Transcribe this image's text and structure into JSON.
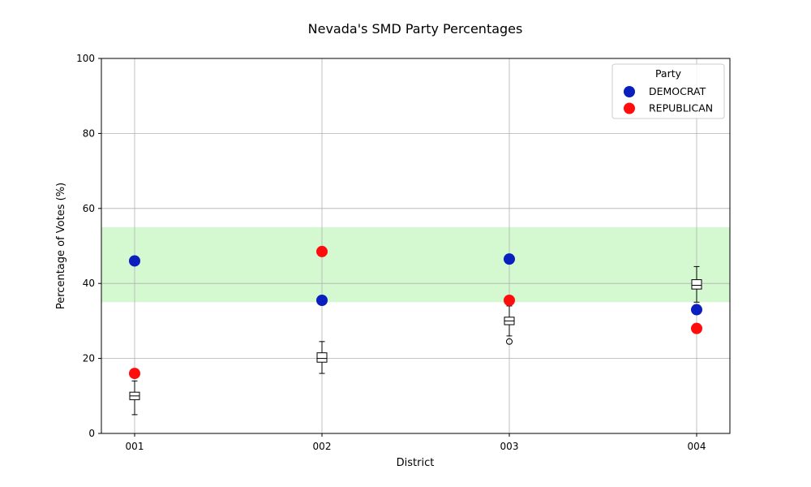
{
  "chart_data": {
    "type": "scatter",
    "title": "Nevada's SMD Party Percentages",
    "xlabel": "District",
    "ylabel": "Percentage of Votes (%)",
    "categories": [
      "001",
      "002",
      "003",
      "004"
    ],
    "ylim": [
      0,
      100
    ],
    "yticks": [
      0,
      20,
      40,
      60,
      80,
      100
    ],
    "grid": true,
    "highlight_band": {
      "from": 35,
      "to": 55,
      "color": "#d4f8d0"
    },
    "legend": {
      "title": "Party",
      "position": "top-right"
    },
    "series": [
      {
        "name": "DEMOCRAT",
        "color": "#0a1fbd",
        "values": [
          46,
          35.5,
          46.5,
          33
        ]
      },
      {
        "name": "REPUBLICAN",
        "color": "#ff0d0d",
        "values": [
          16,
          48.5,
          35.5,
          28
        ]
      }
    ],
    "boxplots": [
      {
        "category": "001",
        "q1": 9,
        "median": 10,
        "q3": 11,
        "whisker_low": 5,
        "whisker_high": 14,
        "outliers": []
      },
      {
        "category": "002",
        "q1": 19,
        "median": 20,
        "q3": 21.5,
        "whisker_low": 16,
        "whisker_high": 24.5,
        "outliers": []
      },
      {
        "category": "003",
        "q1": 29,
        "median": 30,
        "q3": 31,
        "whisker_low": 26,
        "whisker_high": 34,
        "outliers": [
          24.5,
          35
        ]
      },
      {
        "category": "004",
        "q1": 38.5,
        "median": 39.5,
        "q3": 41,
        "whisker_low": 35,
        "whisker_high": 44.5,
        "outliers": []
      }
    ]
  }
}
